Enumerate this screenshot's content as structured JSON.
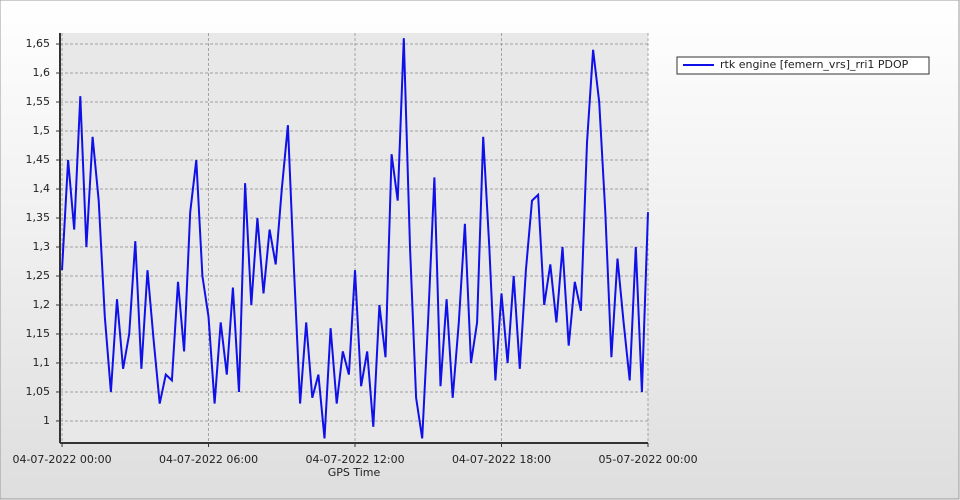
{
  "chart_data": {
    "type": "line",
    "x_label": "GPS Time",
    "x": [
      "04-07-2022 00:00",
      "04-07-2022 00:15",
      "04-07-2022 00:30",
      "04-07-2022 00:45",
      "04-07-2022 01:00",
      "04-07-2022 01:15",
      "04-07-2022 01:30",
      "04-07-2022 01:45",
      "04-07-2022 02:00",
      "04-07-2022 02:15",
      "04-07-2022 02:30",
      "04-07-2022 02:45",
      "04-07-2022 03:00",
      "04-07-2022 03:15",
      "04-07-2022 03:30",
      "04-07-2022 03:45",
      "04-07-2022 04:00",
      "04-07-2022 04:15",
      "04-07-2022 04:30",
      "04-07-2022 04:45",
      "04-07-2022 05:00",
      "04-07-2022 05:15",
      "04-07-2022 05:30",
      "04-07-2022 05:45",
      "04-07-2022 06:00",
      "04-07-2022 06:15",
      "04-07-2022 06:30",
      "04-07-2022 06:45",
      "04-07-2022 07:00",
      "04-07-2022 07:15",
      "04-07-2022 07:30",
      "04-07-2022 07:45",
      "04-07-2022 08:00",
      "04-07-2022 08:15",
      "04-07-2022 08:30",
      "04-07-2022 08:45",
      "04-07-2022 09:00",
      "04-07-2022 09:15",
      "04-07-2022 09:30",
      "04-07-2022 09:45",
      "04-07-2022 10:00",
      "04-07-2022 10:15",
      "04-07-2022 10:30",
      "04-07-2022 10:45",
      "04-07-2022 11:00",
      "04-07-2022 11:15",
      "04-07-2022 11:30",
      "04-07-2022 11:45",
      "04-07-2022 12:00",
      "04-07-2022 12:15",
      "04-07-2022 12:30",
      "04-07-2022 12:45",
      "04-07-2022 13:00",
      "04-07-2022 13:15",
      "04-07-2022 13:30",
      "04-07-2022 13:45",
      "04-07-2022 14:00",
      "04-07-2022 14:15",
      "04-07-2022 14:30",
      "04-07-2022 14:45",
      "04-07-2022 15:00",
      "04-07-2022 15:15",
      "04-07-2022 15:30",
      "04-07-2022 15:45",
      "04-07-2022 16:00",
      "04-07-2022 16:15",
      "04-07-2022 16:30",
      "04-07-2022 16:45",
      "04-07-2022 17:00",
      "04-07-2022 17:15",
      "04-07-2022 17:30",
      "04-07-2022 17:45",
      "04-07-2022 18:00",
      "04-07-2022 18:15",
      "04-07-2022 18:30",
      "04-07-2022 18:45",
      "04-07-2022 19:00",
      "04-07-2022 19:15",
      "04-07-2022 19:30",
      "04-07-2022 19:45",
      "04-07-2022 20:00",
      "04-07-2022 20:15",
      "04-07-2022 20:30",
      "04-07-2022 20:45",
      "04-07-2022 21:00",
      "04-07-2022 21:15",
      "04-07-2022 21:30",
      "04-07-2022 21:45",
      "04-07-2022 22:00",
      "04-07-2022 22:15",
      "04-07-2022 22:30",
      "04-07-2022 22:45",
      "04-07-2022 23:00",
      "04-07-2022 23:15",
      "04-07-2022 23:30",
      "04-07-2022 23:45",
      "05-07-2022 00:00"
    ],
    "series": [
      {
        "name": "rtk engine [femern_vrs]_rri1 PDOP",
        "color": "#1010e8",
        "values": [
          1.26,
          1.45,
          1.33,
          1.56,
          1.3,
          1.49,
          1.38,
          1.18,
          1.05,
          1.21,
          1.09,
          1.15,
          1.31,
          1.09,
          1.26,
          1.14,
          1.03,
          1.08,
          1.07,
          1.24,
          1.12,
          1.36,
          1.45,
          1.25,
          1.18,
          1.03,
          1.17,
          1.08,
          1.23,
          1.05,
          1.41,
          1.2,
          1.35,
          1.22,
          1.33,
          1.27,
          1.4,
          1.51,
          1.26,
          1.03,
          1.17,
          1.04,
          1.08,
          0.97,
          1.16,
          1.03,
          1.12,
          1.08,
          1.26,
          1.06,
          1.12,
          0.99,
          1.2,
          1.11,
          1.46,
          1.38,
          1.66,
          1.3,
          1.04,
          0.97,
          1.18,
          1.42,
          1.06,
          1.21,
          1.04,
          1.17,
          1.34,
          1.1,
          1.17,
          1.49,
          1.3,
          1.07,
          1.22,
          1.1,
          1.25,
          1.09,
          1.26,
          1.38,
          1.39,
          1.2,
          1.27,
          1.17,
          1.3,
          1.13,
          1.24,
          1.19,
          1.48,
          1.64,
          1.55,
          1.36,
          1.11,
          1.28,
          1.17,
          1.07,
          1.3,
          1.05,
          1.36
        ]
      }
    ],
    "xlim": [
      "03-07-2022 23:55",
      "05-07-2022 00:00"
    ],
    "xticks": [
      "04-07-2022 00:00",
      "04-07-2022 06:00",
      "04-07-2022 12:00",
      "04-07-2022 18:00",
      "05-07-2022 00:00"
    ],
    "ylim": [
      0.962,
      1.669
    ],
    "yticks": [
      1,
      {
        "value": 1.05,
        "label": "1,05"
      },
      {
        "value": 1.1,
        "label": "1,1"
      },
      {
        "value": 1.15,
        "label": "1,15"
      },
      {
        "value": 1.2,
        "label": "1,2"
      },
      {
        "value": 1.25,
        "label": "1,25"
      },
      {
        "value": 1.3,
        "label": "1,3"
      },
      {
        "value": 1.35,
        "label": "1,35"
      },
      {
        "value": 1.4,
        "label": "1,4"
      },
      {
        "value": 1.45,
        "label": "1,45"
      },
      {
        "value": 1.5,
        "label": "1,5"
      },
      {
        "value": 1.55,
        "label": "1,55"
      },
      {
        "value": 1.6,
        "label": "1,6"
      },
      {
        "value": 1.65,
        "label": "1,65"
      }
    ],
    "grid": true
  }
}
